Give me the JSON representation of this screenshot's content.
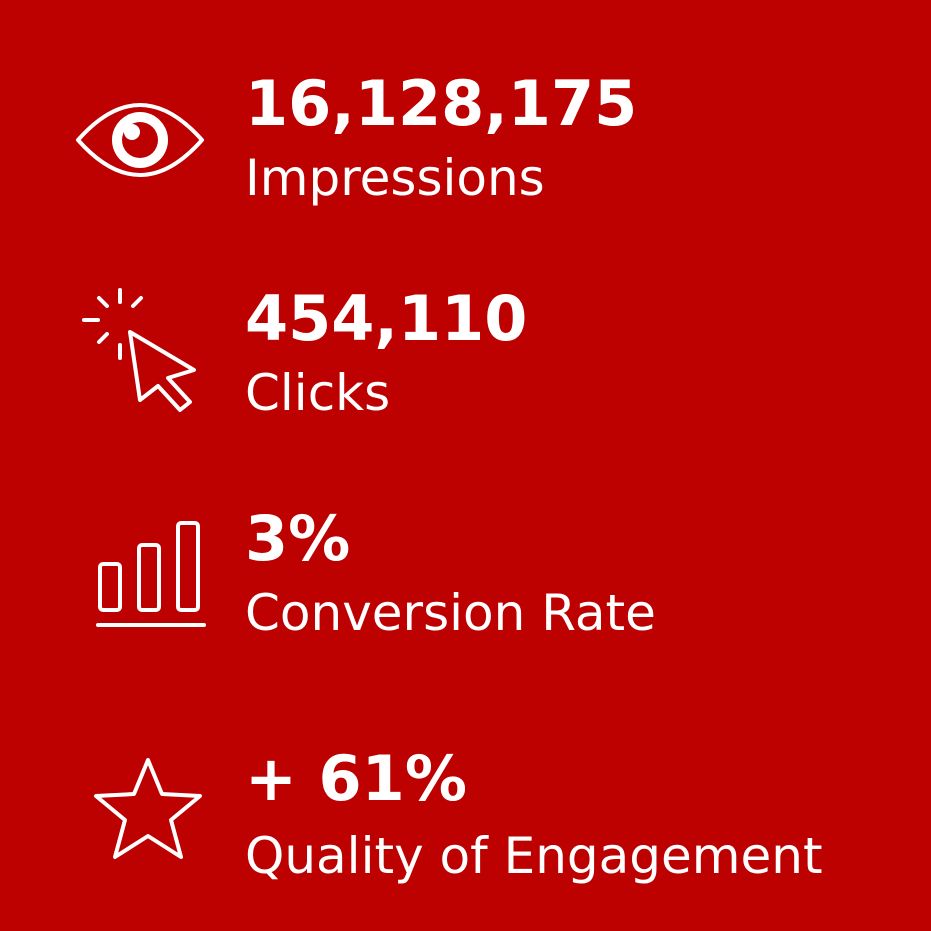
{
  "stats": [
    {
      "value": "16,128,175",
      "label": "Impressions"
    },
    {
      "value": "454,110",
      "label": "Clicks"
    },
    {
      "value": "3%",
      "label": "Conversion Rate"
    },
    {
      "value": "+ 61%",
      "label": "Quality of Engagement"
    }
  ]
}
